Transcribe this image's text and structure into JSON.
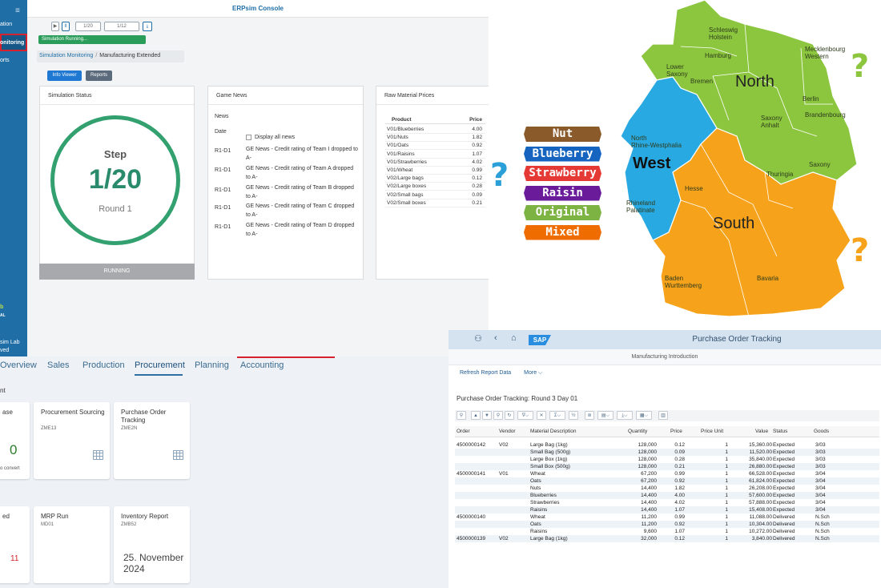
{
  "console": {
    "title": "ERPsim Console",
    "sidebar": {
      "menu_icon": "menu-icon",
      "items": [
        {
          "label": "ation",
          "top": 0
        },
        {
          "label": "onitoring",
          "top": 0
        },
        {
          "label": "orts",
          "top": 0
        }
      ],
      "logo_top": "b",
      "logo_bottom": "AL",
      "footer1": "sim Lab",
      "footer2": "ved"
    },
    "toolbar": {
      "play": "▶",
      "pause": "II",
      "step_input": "1/20",
      "round_input": "1/12",
      "download": "⤓"
    },
    "status_pill": "Simulation Running...",
    "breadcrumb": {
      "link": "Simulation Monitoring",
      "current": "Manufacturing Extended"
    },
    "buttons": {
      "info_viewer": "Info Viewer",
      "reports": "Reports"
    },
    "simulation_status": {
      "title": "Simulation Status",
      "step_label": "Step",
      "step_value": "1/20",
      "round_label": "Round 1",
      "state": "RUNNING"
    },
    "game_news": {
      "title": "Game News",
      "news_label": "News",
      "date_label": "Date",
      "display_all": "Display all news",
      "items": [
        {
          "date": "R1-D1",
          "text": "GE News - Credit rating of Team I dropped to A-"
        },
        {
          "date": "R1-D1",
          "text": "GE News - Credit rating of Team A dropped to A-"
        },
        {
          "date": "R1-D1",
          "text": "GE News - Credit rating of Team B dropped to A-"
        },
        {
          "date": "R1-D1",
          "text": "GE News - Credit rating of Team C dropped to A-"
        },
        {
          "date": "R1-D1",
          "text": "GE News - Credit rating of Team D dropped to A-"
        }
      ]
    },
    "raw_material_prices": {
      "title": "Raw Material Prices",
      "col_product": "Product",
      "col_price": "Price",
      "rows": [
        {
          "product": "V01/Blueberries",
          "price": "4.00"
        },
        {
          "product": "V01/Nuts",
          "price": "1.82"
        },
        {
          "product": "V01/Oats",
          "price": "0.92"
        },
        {
          "product": "V01/Raisins",
          "price": "1.07"
        },
        {
          "product": "V01/Strawberries",
          "price": "4.02"
        },
        {
          "product": "V01/Wheat",
          "price": "0.99"
        },
        {
          "product": "V02/Large bags",
          "price": "0.12"
        },
        {
          "product": "V02/Large boxes",
          "price": "0.28"
        },
        {
          "product": "V02/Small bags",
          "price": "0.09"
        },
        {
          "product": "V02/Small boxes",
          "price": "0.21"
        }
      ]
    }
  },
  "launchpad": {
    "tabs": [
      "Overview",
      "Sales",
      "Production",
      "Procurement",
      "Planning",
      "Accounting"
    ],
    "section1": "nt",
    "section2": "",
    "tiles": [
      {
        "title": "ase",
        "subtitle": "",
        "value": "0",
        "footer": "o convert"
      },
      {
        "title": "Procurement Sourcing",
        "subtitle": "ZME13"
      },
      {
        "title": "Purchase Order Tracking",
        "subtitle": "ZME2N"
      },
      {
        "title": "ed",
        "subtitle": "",
        "value": "11"
      },
      {
        "title": "MRP Run",
        "subtitle": "MD01"
      },
      {
        "title": "Inventory Report",
        "subtitle": "ZMB52",
        "date": "25. November 2024"
      }
    ]
  },
  "po_tracking": {
    "shell_title": "Purchase Order Tracking",
    "logo": "SAP",
    "subtitle": "Manufacturing Introduction",
    "actions": {
      "refresh": "Refresh Report Data",
      "more": "More ⌵"
    },
    "heading": "Purchase Order Tracking: Round 3 Day 01",
    "columns": [
      "Order",
      "Vendor",
      "Material Description",
      "Quantity",
      "Price",
      "Price Unit",
      "Value",
      "Status",
      "Goods"
    ],
    "rows": [
      {
        "order": "4500000142",
        "vendor": "V02",
        "material": "Large Bag (1kg)",
        "qty": "128,000",
        "price": "0.12",
        "unit": "1",
        "value": "15,360.00",
        "status": "Expected",
        "goods": "3/03"
      },
      {
        "order": "",
        "vendor": "",
        "material": "Small Bag (500g)",
        "qty": "128,000",
        "price": "0.09",
        "unit": "1",
        "value": "11,520.00",
        "status": "Expected",
        "goods": "3/03"
      },
      {
        "order": "",
        "vendor": "",
        "material": "Large Box (1kg)",
        "qty": "128,000",
        "price": "0.28",
        "unit": "1",
        "value": "35,840.00",
        "status": "Expected",
        "goods": "3/03"
      },
      {
        "order": "",
        "vendor": "",
        "material": "Small Box (500g)",
        "qty": "128,000",
        "price": "0.21",
        "unit": "1",
        "value": "26,880.00",
        "status": "Expected",
        "goods": "3/03"
      },
      {
        "order": "4500000141",
        "vendor": "V01",
        "material": "Wheat",
        "qty": "67,200",
        "price": "0.99",
        "unit": "1",
        "value": "66,528.00",
        "status": "Expected",
        "goods": "3/04"
      },
      {
        "order": "",
        "vendor": "",
        "material": "Oats",
        "qty": "67,200",
        "price": "0.92",
        "unit": "1",
        "value": "61,824.00",
        "status": "Expected",
        "goods": "3/04"
      },
      {
        "order": "",
        "vendor": "",
        "material": "Nuts",
        "qty": "14,400",
        "price": "1.82",
        "unit": "1",
        "value": "26,208.00",
        "status": "Expected",
        "goods": "3/04"
      },
      {
        "order": "",
        "vendor": "",
        "material": "Blueberries",
        "qty": "14,400",
        "price": "4.00",
        "unit": "1",
        "value": "57,600.00",
        "status": "Expected",
        "goods": "3/04"
      },
      {
        "order": "",
        "vendor": "",
        "material": "Strawberries",
        "qty": "14,400",
        "price": "4.02",
        "unit": "1",
        "value": "57,888.00",
        "status": "Expected",
        "goods": "3/04"
      },
      {
        "order": "",
        "vendor": "",
        "material": "Raisins",
        "qty": "14,400",
        "price": "1.07",
        "unit": "1",
        "value": "15,408.00",
        "status": "Expected",
        "goods": "3/04"
      },
      {
        "order": "4500000140",
        "vendor": "",
        "material": "Wheat",
        "qty": "11,200",
        "price": "0.99",
        "unit": "1",
        "value": "11,088.00",
        "status": "Delivered",
        "goods": "N.Sch"
      },
      {
        "order": "",
        "vendor": "",
        "material": "Oats",
        "qty": "11,200",
        "price": "0.92",
        "unit": "1",
        "value": "10,304.00",
        "status": "Delivered",
        "goods": "N.Sch"
      },
      {
        "order": "",
        "vendor": "",
        "material": "Raisins",
        "qty": "9,600",
        "price": "1.07",
        "unit": "1",
        "value": "10,272.00",
        "status": "Delivered",
        "goods": "N.Sch"
      },
      {
        "order": "4500000139",
        "vendor": "V02",
        "material": "Large Bag (1kg)",
        "qty": "32,000",
        "price": "0.12",
        "unit": "1",
        "value": "3,840.00",
        "status": "Delivered",
        "goods": "N.Sch"
      }
    ]
  },
  "map": {
    "products": [
      {
        "label": "Nut",
        "color": "#8b5a2b"
      },
      {
        "label": "Blueberry",
        "color": "#1565c0"
      },
      {
        "label": "Strawberry",
        "color": "#e53935"
      },
      {
        "label": "Raisin",
        "color": "#6a1b9a"
      },
      {
        "label": "Original",
        "color": "#7cb342"
      },
      {
        "label": "Mixed",
        "color": "#ef6c00"
      }
    ],
    "regions": {
      "north": "North",
      "west": "West",
      "south": "South"
    },
    "states": [
      "Schleswig Holstein",
      "Hamburg",
      "Mecklenbourg Western",
      "Lower Saxony",
      "Bremen",
      "Berlin",
      "Brandenbourg",
      "Saxony Anhalt",
      "North Rhine-Westphalia",
      "Thuringia",
      "Hesse",
      "Saxony",
      "Rhineland Palatinate",
      "Baden Wurttemberg",
      "Bavaria"
    ],
    "colors": {
      "north": "#8cc63f",
      "west": "#29a9e1",
      "south": "#f7a21b"
    },
    "question": "?"
  }
}
